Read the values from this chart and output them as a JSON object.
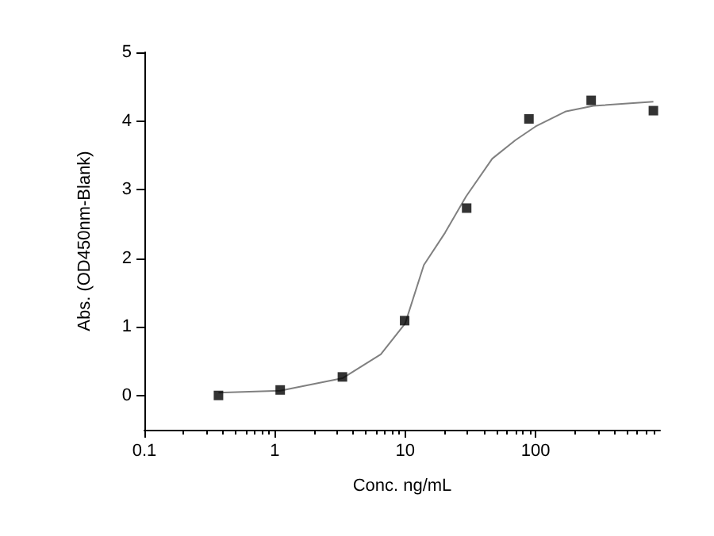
{
  "chart_data": {
    "type": "scatter",
    "xlabel": "Conc. ng/mL",
    "ylabel": "Abs. (OD450nm-Blank)",
    "log": "x",
    "xlim": [
      0.1,
      900
    ],
    "xticks": [
      0.1,
      1,
      10,
      100
    ],
    "ylim": [
      -0.5,
      5
    ],
    "yticks": [
      0,
      1,
      2,
      3,
      4,
      5
    ],
    "grid": false,
    "series": [
      {
        "marker": "square",
        "color": "#000000",
        "x": [
          0.37,
          1.1,
          3.3,
          9.9,
          29.6,
          88.9,
          266.7,
          800
        ],
        "values": [
          0.0,
          0.08,
          0.27,
          1.09,
          2.73,
          4.03,
          4.3,
          4.15
        ]
      },
      {
        "type": "line",
        "marker": "none",
        "color": "#808080",
        "x": [
          0.37,
          1.1,
          3.3,
          6.5,
          10,
          13.9,
          20.2,
          29.3,
          46.5,
          70,
          100,
          171,
          277,
          800
        ],
        "values": [
          0.04,
          0.07,
          0.25,
          0.6,
          1.05,
          1.9,
          2.37,
          2.9,
          3.45,
          3.72,
          3.92,
          4.14,
          4.22,
          4.28
        ]
      }
    ]
  }
}
